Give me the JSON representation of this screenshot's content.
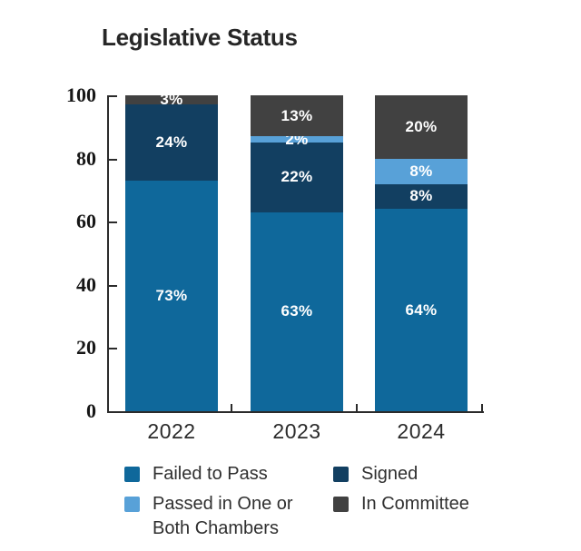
{
  "title": "Legislative Status",
  "chart_data": {
    "type": "bar",
    "stacked": true,
    "title": "Legislative Status",
    "categories": [
      "2022",
      "2023",
      "2024"
    ],
    "series": [
      {
        "name": "Failed to Pass",
        "color": "#0f689b",
        "values": [
          73,
          63,
          64
        ],
        "data_labels": [
          "73%",
          "63%",
          "64%"
        ]
      },
      {
        "name": "Signed",
        "color": "#123f61",
        "values": [
          24,
          22,
          8
        ],
        "data_labels": [
          "24%",
          "22%",
          "8%"
        ]
      },
      {
        "name": "Passed in One or Both Chambers",
        "color": "#58a1d8",
        "values": [
          0,
          2,
          8
        ],
        "data_labels": [
          "",
          "2%",
          "8%"
        ]
      },
      {
        "name": "In Committee",
        "color": "#414141",
        "values": [
          3,
          13,
          20
        ],
        "data_labels": [
          "3%",
          "13%",
          "20%"
        ]
      }
    ],
    "xlabel": "",
    "ylabel": "",
    "ylim": [
      0,
      100
    ],
    "y_ticks": [
      0,
      20,
      40,
      60,
      80,
      100
    ],
    "grid": false,
    "legend_position": "bottom",
    "label_color": "#ffffff"
  },
  "legend": {
    "columns": [
      [
        {
          "label": "Failed to Pass",
          "color": "#0f689b"
        },
        {
          "label": "Passed in One or Both Chambers",
          "color": "#58a1d8"
        }
      ],
      [
        {
          "label": "Signed",
          "color": "#123f61"
        },
        {
          "label": "In Committee",
          "color": "#414141"
        }
      ]
    ]
  }
}
